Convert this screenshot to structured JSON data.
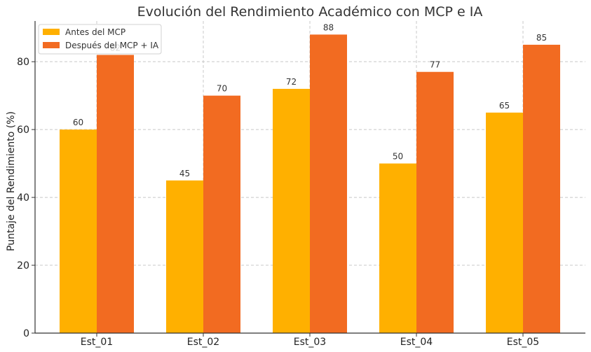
{
  "chart_data": {
    "type": "bar",
    "title": "Evolución del Rendimiento Académico con MCP e IA",
    "xlabel": "",
    "ylabel": "Puntaje del Rendimiento (%)",
    "ylim": [
      0,
      92
    ],
    "yticks": [
      0,
      20,
      40,
      60,
      80
    ],
    "categories": [
      "Est_01",
      "Est_02",
      "Est_03",
      "Est_04",
      "Est_05"
    ],
    "series": [
      {
        "name": "Antes del MCP",
        "color": "#FFB000",
        "values": [
          60,
          45,
          72,
          50,
          65
        ]
      },
      {
        "name": "Después del MCP + IA",
        "color": "#F26B21",
        "values": [
          82,
          70,
          88,
          77,
          85
        ]
      }
    ],
    "grid": true,
    "legend": "top-left"
  }
}
